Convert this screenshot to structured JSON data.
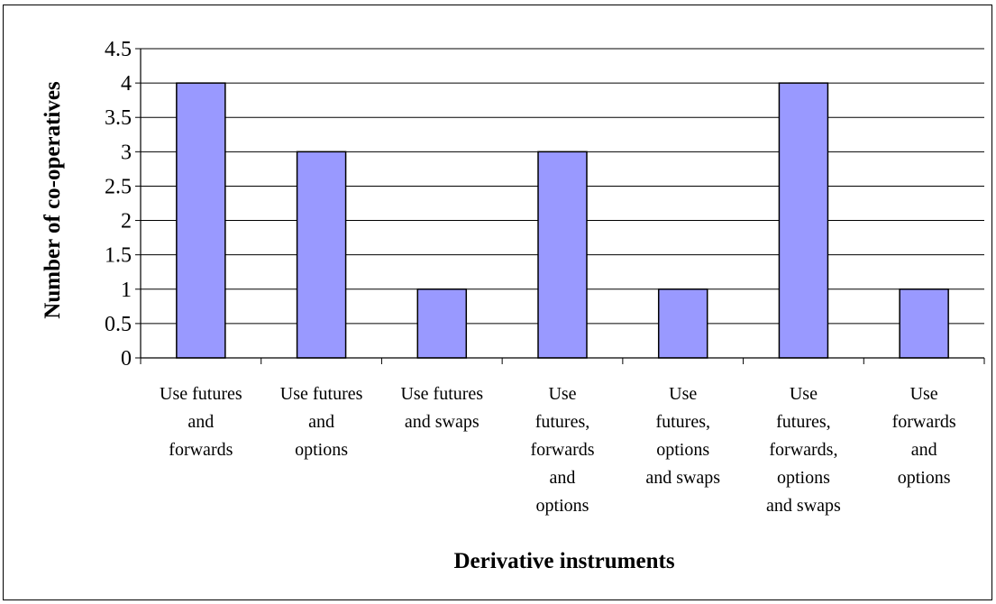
{
  "chart_data": {
    "type": "bar",
    "title": "",
    "xlabel": "Derivative instruments",
    "ylabel": "Number of co-operatives",
    "ylim": [
      0,
      4.5
    ],
    "ytick_step": 0.5,
    "yticks": [
      "0",
      "0.5",
      "1",
      "1.5",
      "2",
      "2.5",
      "3",
      "3.5",
      "4",
      "4.5"
    ],
    "grid": true,
    "legend": "none",
    "categories": [
      [
        "Use futures",
        "and",
        "forwards"
      ],
      [
        "Use futures",
        "and",
        "options"
      ],
      [
        "Use futures",
        "and swaps"
      ],
      [
        "Use",
        "futures,",
        "forwards",
        "and",
        "options"
      ],
      [
        "Use",
        "futures,",
        "options",
        "and swaps"
      ],
      [
        "Use",
        "futures,",
        "forwards,",
        "options",
        "and swaps"
      ],
      [
        "Use",
        "forwards",
        "and",
        "options"
      ]
    ],
    "values": [
      4,
      3,
      1,
      3,
      1,
      4,
      1
    ],
    "bar_color": "#9999FF",
    "bar_edge_color": "#000000",
    "grid_color": "#000000"
  }
}
